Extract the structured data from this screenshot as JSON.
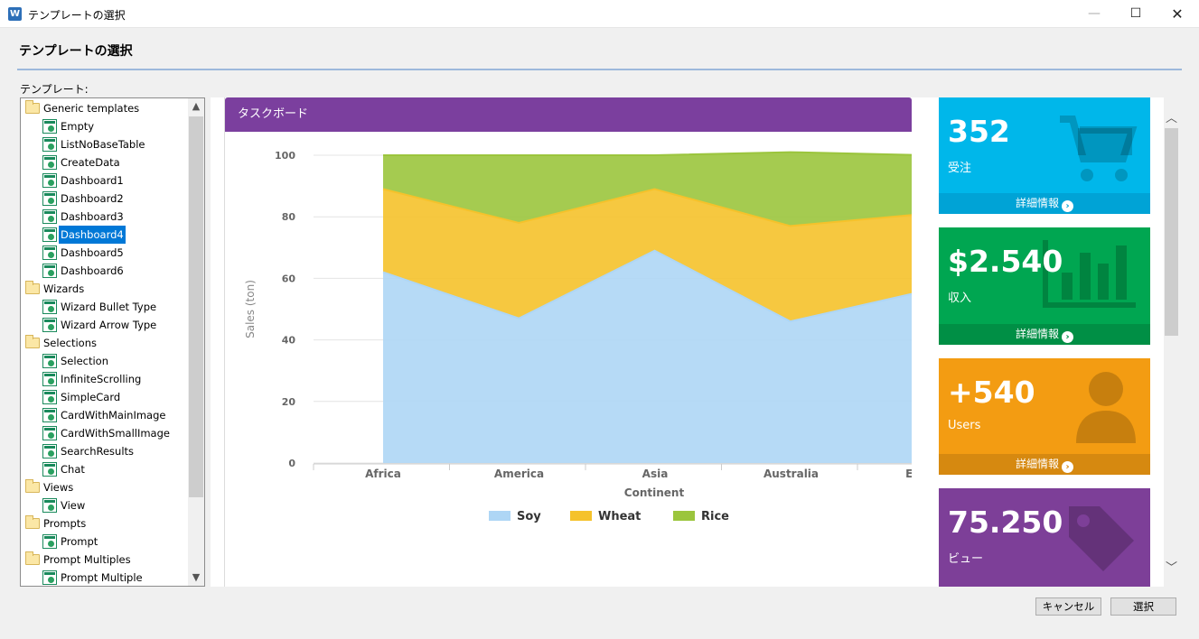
{
  "window": {
    "title": "テンプレートの選択",
    "min_glyph": "—",
    "max_glyph": "☐",
    "close_glyph": "✕"
  },
  "header": {
    "title": "テンプレートの選択"
  },
  "tree": {
    "label": "テンプレート:",
    "items": [
      {
        "text": "Generic templates",
        "kind": "folder",
        "level": 0
      },
      {
        "text": "Empty",
        "kind": "template",
        "level": 1
      },
      {
        "text": "ListNoBaseTable",
        "kind": "template",
        "level": 1
      },
      {
        "text": "CreateData",
        "kind": "template",
        "level": 1
      },
      {
        "text": "Dashboard1",
        "kind": "template",
        "level": 1
      },
      {
        "text": "Dashboard2",
        "kind": "template",
        "level": 1
      },
      {
        "text": "Dashboard3",
        "kind": "template",
        "level": 1
      },
      {
        "text": "Dashboard4",
        "kind": "template",
        "level": 1,
        "selected": true
      },
      {
        "text": "Dashboard5",
        "kind": "template",
        "level": 1
      },
      {
        "text": "Dashboard6",
        "kind": "template",
        "level": 1
      },
      {
        "text": "Wizards",
        "kind": "folder",
        "level": 0
      },
      {
        "text": "Wizard Bullet Type",
        "kind": "template",
        "level": 1
      },
      {
        "text": "Wizard Arrow Type",
        "kind": "template",
        "level": 1
      },
      {
        "text": "Selections",
        "kind": "folder",
        "level": 0
      },
      {
        "text": "Selection",
        "kind": "template",
        "level": 1
      },
      {
        "text": "InfiniteScrolling",
        "kind": "template",
        "level": 1
      },
      {
        "text": "SimpleCard",
        "kind": "template",
        "level": 1
      },
      {
        "text": "CardWithMainImage",
        "kind": "template",
        "level": 1
      },
      {
        "text": "CardWithSmallImage",
        "kind": "template",
        "level": 1
      },
      {
        "text": "SearchResults",
        "kind": "template",
        "level": 1
      },
      {
        "text": "Chat",
        "kind": "template",
        "level": 1
      },
      {
        "text": "Views",
        "kind": "folder",
        "level": 0
      },
      {
        "text": "View",
        "kind": "template",
        "level": 1
      },
      {
        "text": "Prompts",
        "kind": "folder",
        "level": 0
      },
      {
        "text": "Prompt",
        "kind": "template",
        "level": 1
      },
      {
        "text": "Prompt Multiples",
        "kind": "folder",
        "level": 0
      },
      {
        "text": "Prompt Multiple",
        "kind": "template",
        "level": 1
      }
    ]
  },
  "preview": {
    "panel_title": "タスクボード",
    "tiles": [
      {
        "value": "352",
        "label": "受注",
        "link": "詳細情報",
        "color": "#00b7ea",
        "footer_color": "#00a3d6",
        "icon": "cart-icon"
      },
      {
        "value": "$2.540",
        "label": "収入",
        "link": "詳細情報",
        "color": "#00a651",
        "footer_color": "#008f45",
        "icon": "bar-chart-icon"
      },
      {
        "value": "+540",
        "label": "Users",
        "link": "詳細情報",
        "color": "#f39c12",
        "footer_color": "#d68910",
        "icon": "user-icon"
      },
      {
        "value": "75.250",
        "label": "ビュー",
        "link": "",
        "color": "#7d3f98",
        "footer_color": "#6a3482",
        "icon": "tag-icon"
      }
    ]
  },
  "chart_data": {
    "type": "area",
    "stacked": true,
    "categories": [
      "Africa",
      "America",
      "Asia",
      "Australia",
      "Europe"
    ],
    "series": [
      {
        "name": "Soy",
        "values": [
          62,
          47,
          69,
          46,
          56
        ],
        "color": "#aed6f5"
      },
      {
        "name": "Wheat",
        "values": [
          27,
          31,
          20,
          31,
          25
        ],
        "color": "#f5c22b"
      },
      {
        "name": "Rice",
        "values": [
          11,
          22,
          11,
          24,
          19
        ],
        "color": "#9bc53d"
      }
    ],
    "xlabel": "Continent",
    "ylabel": "Sales (ton)",
    "ylim": [
      0,
      100
    ],
    "yticks": [
      "0",
      "20",
      "40",
      "60",
      "80",
      "100"
    ],
    "grid": true,
    "legend": "bottom"
  },
  "buttons": {
    "cancel": "キャンセル",
    "select": "選択"
  }
}
